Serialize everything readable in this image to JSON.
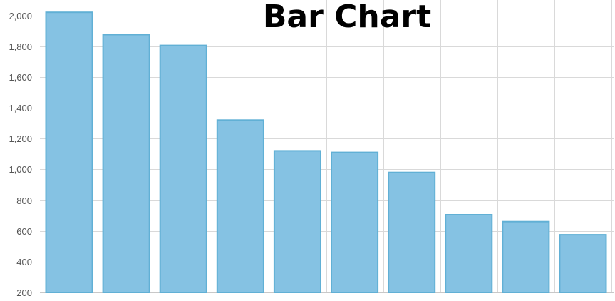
{
  "chart_data": {
    "type": "bar",
    "title": "Bar Chart",
    "xlabel": "",
    "ylabel": "",
    "ylim": [
      200,
      2000
    ],
    "ytick_step": 200,
    "grid": true,
    "categories": [
      "",
      "",
      "",
      "",
      "",
      "",
      "",
      "",
      "",
      ""
    ],
    "values": [
      2020,
      1875,
      1805,
      1320,
      1120,
      1110,
      980,
      705,
      660,
      575
    ],
    "colors": {
      "bar_fill": "#85c2e3",
      "bar_stroke": "#61b0d5",
      "grid": "#d9d9d9"
    }
  }
}
